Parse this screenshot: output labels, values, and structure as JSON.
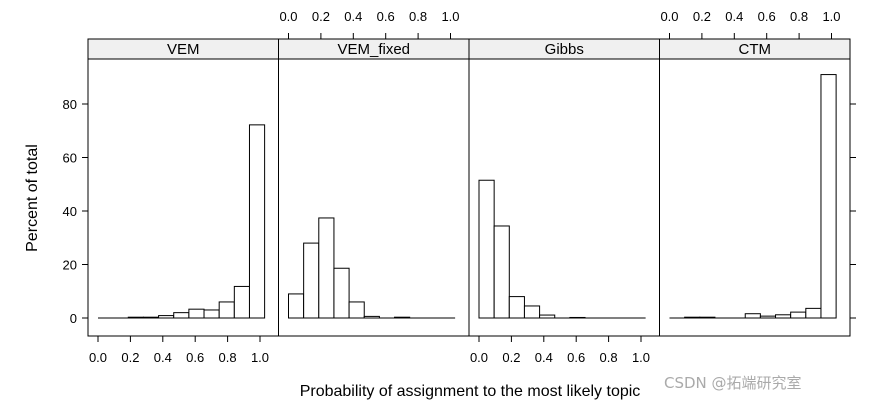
{
  "chart_data": {
    "type": "bar",
    "subtype": "histogram-lattice",
    "xlabel": "Probability of assignment to the most likely topic",
    "ylabel": "Percent of total",
    "xlim": [
      -0.06,
      1.11
    ],
    "ylim": [
      -4,
      96
    ],
    "xticks": [
      "0.0",
      "0.2",
      "0.4",
      "0.6",
      "0.8",
      "1.0"
    ],
    "yticks": [
      "0",
      "20",
      "40",
      "60",
      "80"
    ],
    "bin_start": 0.0,
    "bin_width": 0.0935,
    "panels": [
      {
        "name": "VEM",
        "values": [
          0,
          0,
          0.3,
          0.3,
          0.9,
          2.0,
          3.3,
          3.0,
          6.0,
          11.8,
          72.2
        ]
      },
      {
        "name": "VEM_fixed",
        "values": [
          9.0,
          28.0,
          37.4,
          18.6,
          6.0,
          0.6,
          0,
          0.3,
          0,
          0,
          0
        ]
      },
      {
        "name": "Gibbs",
        "values": [
          51.5,
          34.4,
          8.0,
          4.5,
          1.1,
          0,
          0.2,
          0,
          0,
          0,
          0
        ]
      },
      {
        "name": "CTM",
        "values": [
          0,
          0.3,
          0.3,
          0,
          0,
          1.6,
          0.7,
          1.2,
          2.2,
          3.6,
          91.0
        ]
      }
    ]
  },
  "watermark": "CSDN @拓端研究室"
}
